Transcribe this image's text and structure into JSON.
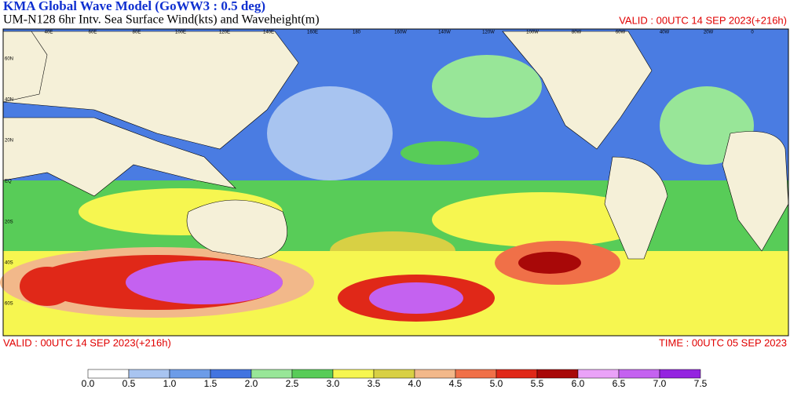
{
  "header": {
    "title": "KMA  Global Wave Model (GoWW3 : 0.5 deg)",
    "subtitle": "UM-N128  6hr Intv. Sea Surface Wind(kts) and Waveheight(m)",
    "valid_top": "VALID : 00UTC 14 SEP 2023(+216h)"
  },
  "footer": {
    "valid": "VALID : 00UTC 14 SEP 2023(+216h)",
    "time": "TIME : 00UTC 05 SEP 2023"
  },
  "map": {
    "lat_labels": [
      "60N",
      "40N",
      "20N",
      "EQ",
      "20S",
      "40S",
      "60S"
    ],
    "lon_labels": [
      "40E",
      "60E",
      "80E",
      "100E",
      "120E",
      "140E",
      "160E",
      "180",
      "160W",
      "140W",
      "120W",
      "100W",
      "80W",
      "60W",
      "40W",
      "20W",
      "0"
    ]
  },
  "colorbar": {
    "labels": [
      "0.0",
      "0.5",
      "1.0",
      "1.5",
      "2.0",
      "2.5",
      "3.0",
      "3.5",
      "4.0",
      "4.5",
      "5.0",
      "5.5",
      "6.0",
      "6.5",
      "7.0",
      "7.5"
    ],
    "colors": [
      "#ffffff",
      "#a8c4f0",
      "#6c9ce8",
      "#4274e0",
      "#98e698",
      "#58cc58",
      "#f6f650",
      "#d8d044",
      "#f2b88a",
      "#f07048",
      "#e02818",
      "#a80808",
      "#eaa2f8",
      "#c462f0",
      "#9424e0"
    ]
  }
}
